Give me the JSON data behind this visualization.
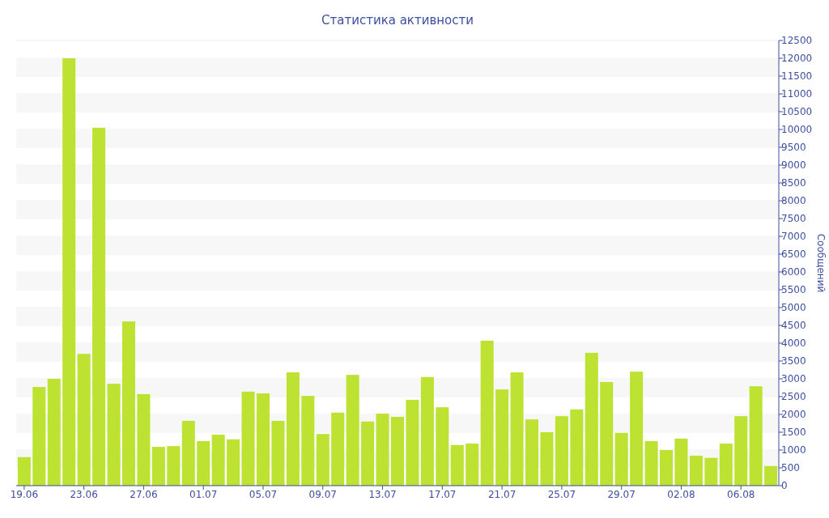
{
  "chart_data": {
    "type": "bar",
    "title": "Статистика активности",
    "ylabel": "Сообщений",
    "categories": [
      "19.06",
      null,
      null,
      null,
      "23.06",
      null,
      null,
      null,
      "27.06",
      null,
      null,
      null,
      "01.07",
      null,
      null,
      null,
      "05.07",
      null,
      null,
      null,
      "09.07",
      null,
      null,
      null,
      "13.07",
      null,
      null,
      null,
      "17.07",
      null,
      null,
      null,
      "21.07",
      null,
      null,
      null,
      "25.07",
      null,
      null,
      null,
      "29.07",
      null,
      null,
      null,
      "02.08",
      null,
      null,
      null,
      "06.08",
      null,
      null
    ],
    "values": [
      800,
      2770,
      3000,
      12000,
      3700,
      10050,
      2860,
      4610,
      2570,
      1090,
      1110,
      1820,
      1250,
      1430,
      1300,
      2640,
      2590,
      1820,
      3180,
      2520,
      1450,
      2050,
      3110,
      1800,
      2020,
      1930,
      2410,
      3050,
      2200,
      1140,
      1180,
      4070,
      2700,
      3180,
      1860,
      1500,
      1950,
      2140,
      3730,
      2910,
      1480,
      3200,
      1250,
      1000,
      1320,
      840,
      780,
      1180,
      1950,
      2790,
      550
    ],
    "color": "#bde232",
    "ylim": [
      0,
      12500
    ],
    "yticks": [
      0,
      500,
      1000,
      1500,
      2000,
      2500,
      3000,
      3500,
      4000,
      4500,
      5000,
      5500,
      6000,
      6500,
      7000,
      7500,
      8000,
      8500,
      9000,
      9500,
      10000,
      10500,
      11000,
      11500,
      12000,
      12500
    ],
    "grid": true
  }
}
